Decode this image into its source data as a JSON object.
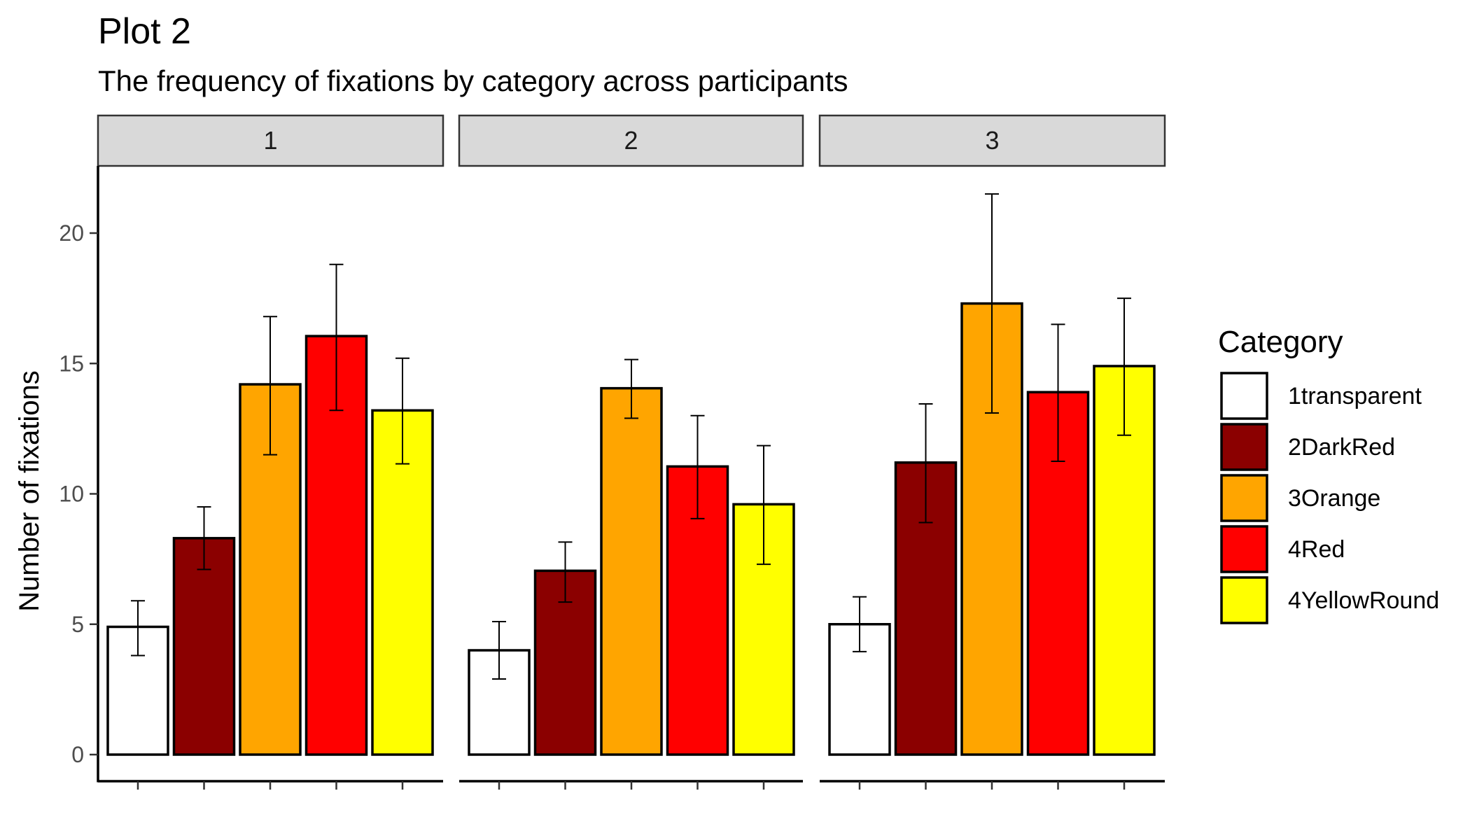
{
  "chart_data": {
    "type": "bar",
    "title": "Plot 2",
    "subtitle": "The frequency of fixations by category across participants",
    "ylabel": "Number of fixations",
    "xlabel": "",
    "ylim": [
      0,
      22.5
    ],
    "yticks": [
      0,
      5,
      10,
      15,
      20
    ],
    "grid": false,
    "legend": {
      "title": "Category",
      "placement": "right"
    },
    "categories": [
      "1transparent",
      "2DarkRed",
      "3Orange",
      "4Red",
      "4YellowRound"
    ],
    "category_colors": [
      "#FFFFFF",
      "#8B0000",
      "#FFA500",
      "#FF0000",
      "#FFFF00"
    ],
    "facets": [
      {
        "label": "1",
        "values": [
          4.9,
          8.3,
          14.2,
          16.05,
          13.2
        ],
        "error_low": [
          3.8,
          7.1,
          11.5,
          13.2,
          11.15
        ],
        "error_high": [
          5.9,
          9.5,
          16.8,
          18.8,
          15.2
        ]
      },
      {
        "label": "2",
        "values": [
          4.0,
          7.05,
          14.05,
          11.05,
          9.6
        ],
        "error_low": [
          2.9,
          5.85,
          12.9,
          9.05,
          7.3
        ],
        "error_high": [
          5.1,
          8.15,
          15.15,
          13.0,
          11.85
        ]
      },
      {
        "label": "3",
        "values": [
          5.0,
          11.2,
          17.3,
          13.9,
          14.9
        ],
        "error_low": [
          3.95,
          8.9,
          13.1,
          11.25,
          12.25
        ],
        "error_high": [
          6.05,
          13.45,
          21.5,
          16.5,
          17.5
        ]
      }
    ]
  }
}
